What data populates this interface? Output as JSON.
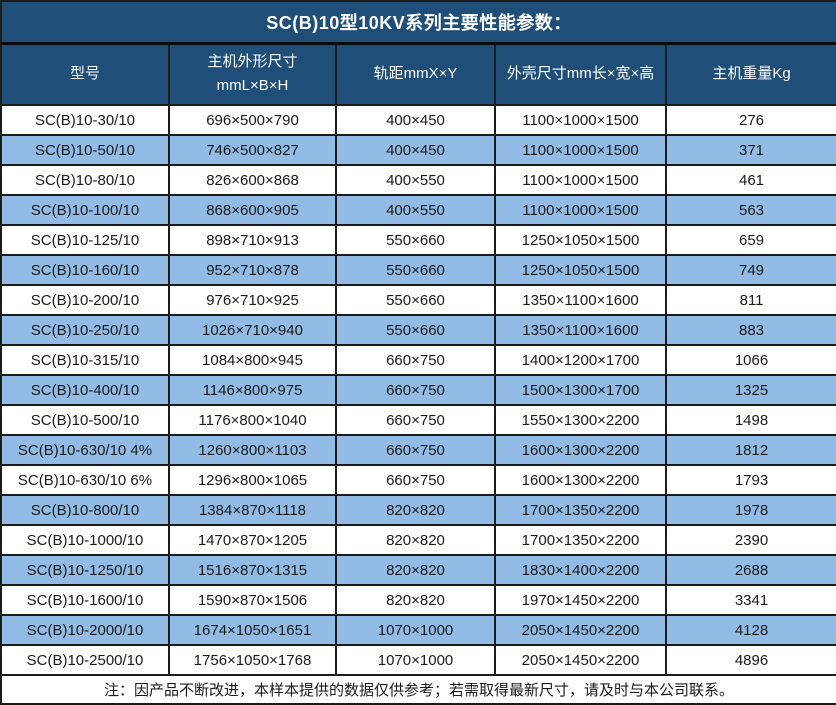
{
  "title": "SC(B)10型10KV系列主要性能参数：",
  "note": "注：因产品不断改进，本样本提供的数据仅供参考；若需取得最新尺寸，请及时与本公司联系。",
  "colors": {
    "header_bg": "#1F4E79",
    "header_text": "#FFFFFF",
    "row_alt_bg": "#92BCE6",
    "border": "#1B1B1B",
    "body_text": "#1A1A1A"
  },
  "table": {
    "columns": [
      {
        "lines": [
          "型号"
        ]
      },
      {
        "lines": [
          "主机外形尺寸",
          "mmL×B×H"
        ]
      },
      {
        "lines": [
          "轨距mmX×Y"
        ]
      },
      {
        "lines": [
          "外壳尺寸mm长×宽×高"
        ]
      },
      {
        "lines": [
          "主机重量Kg"
        ]
      }
    ],
    "rows": [
      [
        "SC(B)10-30/10",
        "696×500×790",
        "400×450",
        "1100×1000×1500",
        "276"
      ],
      [
        "SC(B)10-50/10",
        "746×500×827",
        "400×450",
        "1100×1000×1500",
        "371"
      ],
      [
        "SC(B)10-80/10",
        "826×600×868",
        "400×550",
        "1100×1000×1500",
        "461"
      ],
      [
        "SC(B)10-100/10",
        "868×600×905",
        "400×550",
        "1100×1000×1500",
        "563"
      ],
      [
        "SC(B)10-125/10",
        "898×710×913",
        "550×660",
        "1250×1050×1500",
        "659"
      ],
      [
        "SC(B)10-160/10",
        "952×710×878",
        "550×660",
        "1250×1050×1500",
        "749"
      ],
      [
        "SC(B)10-200/10",
        "976×710×925",
        "550×660",
        "1350×1100×1600",
        "811"
      ],
      [
        "SC(B)10-250/10",
        "1026×710×940",
        "550×660",
        "1350×1100×1600",
        "883"
      ],
      [
        "SC(B)10-315/10",
        "1084×800×945",
        "660×750",
        "1400×1200×1700",
        "1066"
      ],
      [
        "SC(B)10-400/10",
        "1146×800×975",
        "660×750",
        "1500×1300×1700",
        "1325"
      ],
      [
        "SC(B)10-500/10",
        "1176×800×1040",
        "660×750",
        "1550×1300×2200",
        "1498"
      ],
      [
        "SC(B)10-630/10 4%",
        "1260×800×1103",
        "660×750",
        "1600×1300×2200",
        "1812"
      ],
      [
        "SC(B)10-630/10 6%",
        "1296×800×1065",
        "660×750",
        "1600×1300×2200",
        "1793"
      ],
      [
        "SC(B)10-800/10",
        "1384×870×1118",
        "820×820",
        "1700×1350×2200",
        "1978"
      ],
      [
        "SC(B)10-1000/10",
        "1470×870×1205",
        "820×820",
        "1700×1350×2200",
        "2390"
      ],
      [
        "SC(B)10-1250/10",
        "1516×870×1315",
        "820×820",
        "1830×1400×2200",
        "2688"
      ],
      [
        "SC(B)10-1600/10",
        "1590×870×1506",
        "820×820",
        "1970×1450×2200",
        "3341"
      ],
      [
        "SC(B)10-2000/10",
        "1674×1050×1651",
        "1070×1000",
        "2050×1450×2200",
        "4128"
      ],
      [
        "SC(B)10-2500/10",
        "1756×1050×1768",
        "1070×1000",
        "2050×1450×2200",
        "4896"
      ]
    ]
  }
}
